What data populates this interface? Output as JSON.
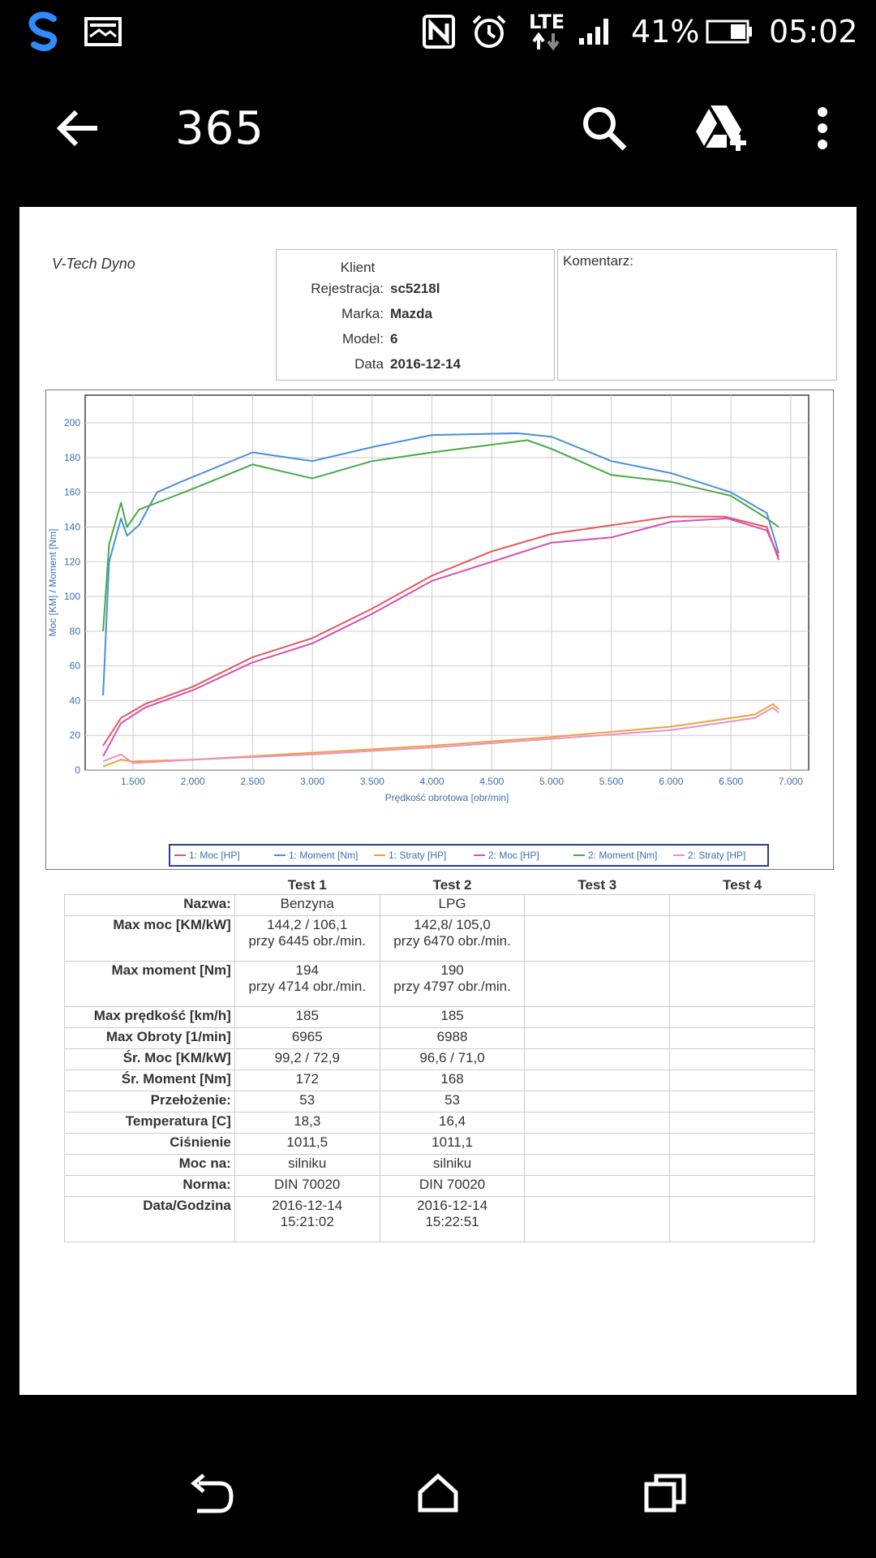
{
  "status_bar": {
    "battery_percent": "41%",
    "time": "05:02",
    "network_label": "LTE",
    "icons": [
      "swift-key-icon",
      "gallery-icon",
      "nfc-icon",
      "alarm-icon",
      "lte-data-icon",
      "signal-icon",
      "battery-icon"
    ]
  },
  "app_bar": {
    "title": "365",
    "icons": [
      "back-arrow-icon",
      "search-icon",
      "add-to-drive-icon",
      "overflow-menu-icon"
    ]
  },
  "document": {
    "brand": "V-Tech Dyno",
    "client": {
      "title": "Klient",
      "fields": [
        {
          "label": "Rejestracja:",
          "value": "sc5218l"
        },
        {
          "label": "Marka:",
          "value": "Mazda"
        },
        {
          "label": "Model:",
          "value": "6"
        },
        {
          "label": "Data",
          "value": "2016-12-14"
        }
      ]
    },
    "comment_label": "Komentarz:"
  },
  "chart_data": {
    "type": "line",
    "xlabel": "Prędkość obrotowa [obr/min]",
    "ylabel": "Moc [KM] / Moment [Nm]",
    "xlim": [
      1100,
      7150
    ],
    "ylim": [
      0,
      215
    ],
    "x_ticks": [
      "1.500",
      "2.000",
      "2.500",
      "3.000",
      "3.500",
      "4.000",
      "4.500",
      "5.000",
      "5.500",
      "6.000",
      "6.500",
      "7.000"
    ],
    "y_ticks": [
      "0",
      "20",
      "40",
      "60",
      "80",
      "100",
      "120",
      "140",
      "160",
      "180",
      "200"
    ],
    "grid": true,
    "legend_position": "bottom",
    "series": [
      {
        "name": "1: Moc [HP]",
        "color": "#e35a5a",
        "x": [
          1250,
          1400,
          1600,
          2000,
          2500,
          3000,
          3500,
          4000,
          4500,
          5000,
          5500,
          6000,
          6445,
          6800,
          6900
        ],
        "y": [
          14,
          30,
          38,
          48,
          65,
          76,
          93,
          112,
          126,
          136,
          141,
          146,
          146,
          140,
          121
        ]
      },
      {
        "name": "1: Moment [Nm]",
        "color": "#4a90d9",
        "x": [
          1250,
          1300,
          1400,
          1450,
          1550,
          1700,
          1900,
          2500,
          3000,
          3500,
          4000,
          4714,
          5000,
          5500,
          6000,
          6500,
          6800,
          6900
        ],
        "y": [
          43,
          120,
          145,
          135,
          141,
          160,
          166,
          183,
          178,
          186,
          193,
          194,
          192,
          178,
          171,
          160,
          148,
          125
        ]
      },
      {
        "name": "1: Straty [HP]",
        "color": "#f0a040",
        "x": [
          1250,
          1400,
          1500,
          2000,
          3000,
          4000,
          5000,
          6000,
          6700,
          6850,
          6900
        ],
        "y": [
          2,
          6,
          5,
          6,
          10,
          14,
          19,
          25,
          32,
          38,
          35
        ]
      },
      {
        "name": "2: Moc [HP]",
        "color": "#d64fb5",
        "x": [
          1250,
          1400,
          1600,
          2000,
          2500,
          3000,
          3500,
          4000,
          4500,
          5000,
          5500,
          6000,
          6470,
          6800,
          6900
        ],
        "y": [
          8,
          27,
          36,
          46,
          62,
          73,
          90,
          109,
          120,
          131,
          134,
          143,
          145,
          138,
          123
        ]
      },
      {
        "name": "2: Moment [Nm]",
        "color": "#4aa84a",
        "x": [
          1250,
          1300,
          1400,
          1450,
          1550,
          1700,
          2000,
          2500,
          3000,
          3500,
          4000,
          4797,
          5000,
          5500,
          6000,
          6500,
          6800,
          6900
        ],
        "y": [
          80,
          130,
          154,
          140,
          150,
          154,
          162,
          176,
          168,
          178,
          183,
          190,
          185,
          170,
          166,
          158,
          145,
          140
        ]
      },
      {
        "name": "2: Straty [HP]",
        "color": "#e893c0",
        "x": [
          1250,
          1400,
          1500,
          2000,
          3000,
          4000,
          5000,
          6000,
          6700,
          6850,
          6900
        ],
        "y": [
          5,
          9,
          4,
          6,
          9,
          13,
          18,
          23,
          30,
          36,
          33
        ]
      }
    ]
  },
  "results": {
    "headers": [
      "Test 1",
      "Test 2",
      "Test 3",
      "Test 4"
    ],
    "rows": [
      {
        "label": "Nazwa:",
        "values": [
          "Benzyna",
          "LPG",
          "",
          ""
        ]
      },
      {
        "label": "Max moc [KM/kW]",
        "values": [
          "144,2 / 106,1\nprzy 6445 obr./min.",
          "142,8/ 105,0\nprzy 6470 obr./min.",
          "",
          ""
        ]
      },
      {
        "label": "Max moment [Nm]",
        "values": [
          "194\nprzy 4714 obr./min.",
          "190\nprzy 4797 obr./min.",
          "",
          ""
        ]
      },
      {
        "label": "Max prędkość [km/h]",
        "values": [
          "185",
          "185",
          "",
          ""
        ]
      },
      {
        "label": "Max Obroty [1/min]",
        "values": [
          "6965",
          "6988",
          "",
          ""
        ]
      },
      {
        "label": "Śr. Moc [KM/kW]",
        "values": [
          "99,2 / 72,9",
          "96,6 / 71,0",
          "",
          ""
        ]
      },
      {
        "label": "Śr. Moment [Nm]",
        "values": [
          "172",
          "168",
          "",
          ""
        ]
      },
      {
        "label": "Przełożenie:",
        "values": [
          "53",
          "53",
          "",
          ""
        ]
      },
      {
        "label": "Temperatura [C]",
        "values": [
          "18,3",
          "16,4",
          "",
          ""
        ]
      },
      {
        "label": "Ciśnienie",
        "values": [
          "1011,5",
          "1011,1",
          "",
          ""
        ]
      },
      {
        "label": "Moc na:",
        "values": [
          "silniku",
          "silniku",
          "",
          ""
        ]
      },
      {
        "label": "Norma:",
        "values": [
          "DIN 70020",
          "DIN 70020",
          "",
          ""
        ]
      },
      {
        "label": "Data/Godzina",
        "values": [
          "2016-12-14\n15:21:02",
          "2016-12-14\n15:22:51",
          "",
          ""
        ]
      }
    ]
  },
  "nav_bar": {
    "icons": [
      "back-nav-icon",
      "home-nav-icon",
      "recents-nav-icon"
    ]
  }
}
